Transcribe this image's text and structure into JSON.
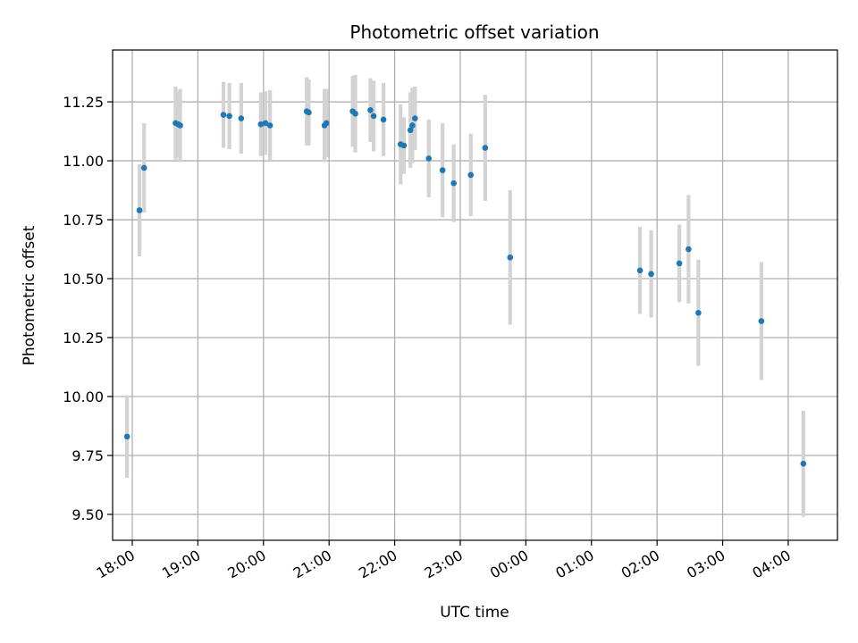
{
  "chart_data": {
    "type": "scatter",
    "title": "Photometric offset variation",
    "xlabel": "UTC time",
    "ylabel": "Photometric offset",
    "x_unit": "hours since 18:00 UTC",
    "xlim": [
      -0.3,
      10.75
    ],
    "ylim": [
      9.39,
      11.47
    ],
    "grid": true,
    "x_ticks": [
      {
        "value": 0,
        "label": "18:00"
      },
      {
        "value": 1,
        "label": "19:00"
      },
      {
        "value": 2,
        "label": "20:00"
      },
      {
        "value": 3,
        "label": "21:00"
      },
      {
        "value": 4,
        "label": "22:00"
      },
      {
        "value": 5,
        "label": "23:00"
      },
      {
        "value": 6,
        "label": "00:00"
      },
      {
        "value": 7,
        "label": "01:00"
      },
      {
        "value": 8,
        "label": "02:00"
      },
      {
        "value": 9,
        "label": "03:00"
      },
      {
        "value": 10,
        "label": "04:00"
      }
    ],
    "y_ticks": [
      9.5,
      9.75,
      10.0,
      10.25,
      10.5,
      10.75,
      11.0,
      11.25
    ],
    "y_tick_labels": [
      "9.50",
      "9.75",
      "10.00",
      "10.25",
      "10.50",
      "10.75",
      "11.00",
      "11.25"
    ],
    "marker_color": "#1f77b4",
    "errorbar_color": "#d3d3d3",
    "points": [
      {
        "x": -0.08,
        "y": 9.83,
        "err": 0.175
      },
      {
        "x": 0.11,
        "y": 10.79,
        "err": 0.195
      },
      {
        "x": 0.18,
        "y": 10.97,
        "err": 0.19
      },
      {
        "x": 0.66,
        "y": 11.16,
        "err": 0.155
      },
      {
        "x": 0.7,
        "y": 11.155,
        "err": 0.14
      },
      {
        "x": 0.73,
        "y": 11.15,
        "err": 0.155
      },
      {
        "x": 1.39,
        "y": 11.195,
        "err": 0.14
      },
      {
        "x": 1.48,
        "y": 11.19,
        "err": 0.14
      },
      {
        "x": 1.66,
        "y": 11.18,
        "err": 0.15
      },
      {
        "x": 1.96,
        "y": 11.155,
        "err": 0.135
      },
      {
        "x": 2.03,
        "y": 11.16,
        "err": 0.135
      },
      {
        "x": 2.1,
        "y": 11.15,
        "err": 0.15
      },
      {
        "x": 2.66,
        "y": 11.21,
        "err": 0.145
      },
      {
        "x": 2.69,
        "y": 11.205,
        "err": 0.14
      },
      {
        "x": 2.93,
        "y": 11.15,
        "err": 0.155
      },
      {
        "x": 2.96,
        "y": 11.16,
        "err": 0.145
      },
      {
        "x": 3.36,
        "y": 11.21,
        "err": 0.15
      },
      {
        "x": 3.4,
        "y": 11.2,
        "err": 0.165
      },
      {
        "x": 3.63,
        "y": 11.215,
        "err": 0.135
      },
      {
        "x": 3.68,
        "y": 11.19,
        "err": 0.15
      },
      {
        "x": 3.83,
        "y": 11.175,
        "err": 0.155
      },
      {
        "x": 4.09,
        "y": 11.07,
        "err": 0.17
      },
      {
        "x": 4.14,
        "y": 11.065,
        "err": 0.12
      },
      {
        "x": 4.24,
        "y": 11.13,
        "err": 0.16
      },
      {
        "x": 4.27,
        "y": 11.15,
        "err": 0.16
      },
      {
        "x": 4.31,
        "y": 11.18,
        "err": 0.135
      },
      {
        "x": 4.52,
        "y": 11.01,
        "err": 0.165
      },
      {
        "x": 4.73,
        "y": 10.96,
        "err": 0.2
      },
      {
        "x": 4.9,
        "y": 10.905,
        "err": 0.165
      },
      {
        "x": 5.16,
        "y": 10.94,
        "err": 0.175
      },
      {
        "x": 5.38,
        "y": 11.055,
        "err": 0.225
      },
      {
        "x": 5.76,
        "y": 10.59,
        "err": 0.285
      },
      {
        "x": 7.74,
        "y": 10.535,
        "err": 0.185
      },
      {
        "x": 7.91,
        "y": 10.52,
        "err": 0.185
      },
      {
        "x": 8.34,
        "y": 10.565,
        "err": 0.165
      },
      {
        "x": 8.48,
        "y": 10.625,
        "err": 0.23
      },
      {
        "x": 8.63,
        "y": 10.355,
        "err": 0.225
      },
      {
        "x": 9.59,
        "y": 10.32,
        "err": 0.25
      },
      {
        "x": 10.23,
        "y": 9.715,
        "err": 0.225
      }
    ]
  }
}
